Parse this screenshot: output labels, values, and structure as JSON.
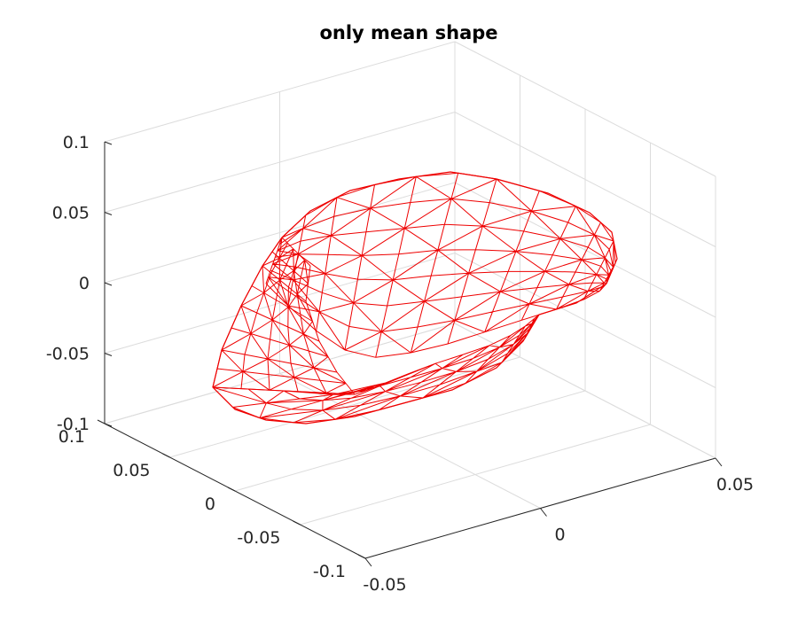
{
  "chart_data": {
    "type": "3d-mesh",
    "title": "only mean shape",
    "xlabel": "",
    "ylabel": "",
    "zlabel": "",
    "xlim": [
      -0.05,
      0.05
    ],
    "ylim": [
      -0.1,
      0.1
    ],
    "zlim": [
      -0.1,
      0.1
    ],
    "x_ticks": [
      "-0.05",
      "0",
      "0.05"
    ],
    "y_ticks": [
      "-0.1",
      "-0.05",
      "0",
      "0.05",
      "0.1"
    ],
    "z_ticks": [
      "-0.1",
      "-0.05",
      "0",
      "0.05",
      "0.1"
    ],
    "grid": true,
    "mesh_color": "#ee0000",
    "surface": "triangulated wireframe (mean shape)"
  }
}
